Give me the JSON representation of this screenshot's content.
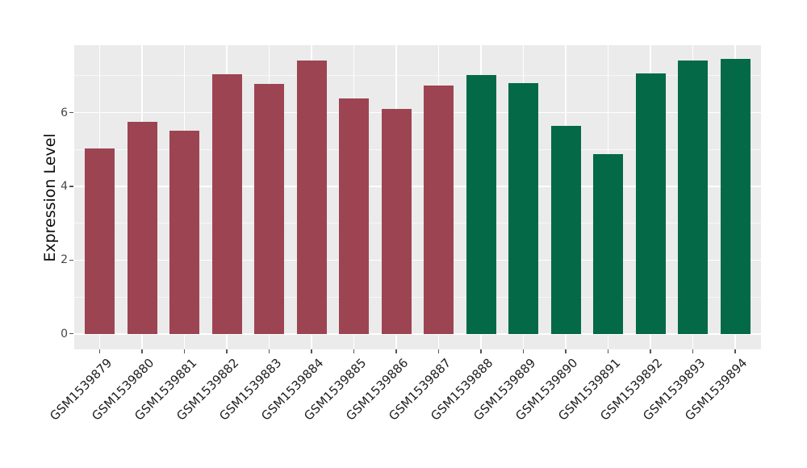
{
  "chart_data": {
    "type": "bar",
    "title": "",
    "xlabel": "",
    "ylabel": "Expression Level",
    "categories": [
      "GSM1539879",
      "GSM1539880",
      "GSM1539881",
      "GSM1539882",
      "GSM1539883",
      "GSM1539884",
      "GSM1539885",
      "GSM1539886",
      "GSM1539887",
      "GSM1539888",
      "GSM1539889",
      "GSM1539890",
      "GSM1539891",
      "GSM1539892",
      "GSM1539893",
      "GSM1539894"
    ],
    "values": [
      5.03,
      5.76,
      5.52,
      7.05,
      6.78,
      7.42,
      6.39,
      6.1,
      6.73,
      7.03,
      6.81,
      5.65,
      4.87,
      7.07,
      7.41,
      7.45
    ],
    "bar_colors": [
      "#9D4452",
      "#9D4452",
      "#9D4452",
      "#9D4452",
      "#9D4452",
      "#9D4452",
      "#9D4452",
      "#9D4452",
      "#9D4452",
      "#046947",
      "#046947",
      "#046947",
      "#046947",
      "#046947",
      "#046947",
      "#046947"
    ],
    "group_palette": {
      "group1": "#9D4452",
      "group2": "#046947"
    },
    "yticks": [
      0,
      2,
      4,
      6
    ],
    "minor_yticks": [
      1,
      3,
      5,
      7
    ],
    "ylim": [
      -0.42,
      7.83
    ],
    "grid": "on",
    "legend": "none",
    "panel_bg": "#EBEBEB",
    "grid_major_color": "#FFFFFF",
    "grid_minor_color": "rgba(255,255,255,0.65)",
    "tick_color": "#555555",
    "figure_bg": "#FFFFFF"
  }
}
